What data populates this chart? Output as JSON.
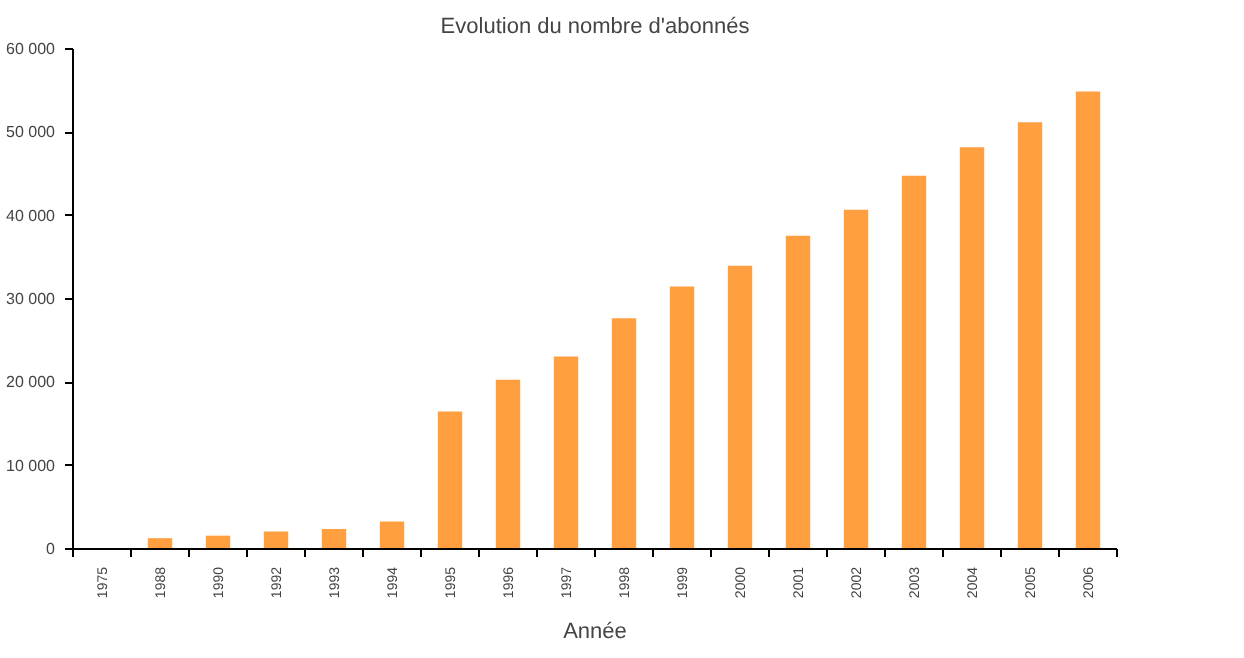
{
  "chart_data": {
    "type": "bar",
    "title": "Evolution du nombre d'abonnés",
    "xlabel": "Année",
    "categories": [
      "1975",
      "1988",
      "1990",
      "1992",
      "1993",
      "1994",
      "1995",
      "1996",
      "1997",
      "1998",
      "1999",
      "2000",
      "2001",
      "2002",
      "2003",
      "2004",
      "2005",
      "2006"
    ],
    "values": [
      0,
      1300,
      1600,
      2100,
      2400,
      3300,
      16500,
      20300,
      23100,
      27700,
      31500,
      34000,
      37600,
      40700,
      44800,
      48200,
      51200,
      54900
    ],
    "color": "#ff9f40",
    "ylim": [
      0,
      60000
    ],
    "yticks": [
      {
        "value": 0,
        "label": "0"
      },
      {
        "value": 10000,
        "label": "10 000"
      },
      {
        "value": 20000,
        "label": "20 000"
      },
      {
        "value": 30000,
        "label": "30 000"
      },
      {
        "value": 40000,
        "label": "40 000"
      },
      {
        "value": 50000,
        "label": "50 000"
      },
      {
        "value": 60000,
        "label": "60 000"
      }
    ],
    "grid": false
  }
}
